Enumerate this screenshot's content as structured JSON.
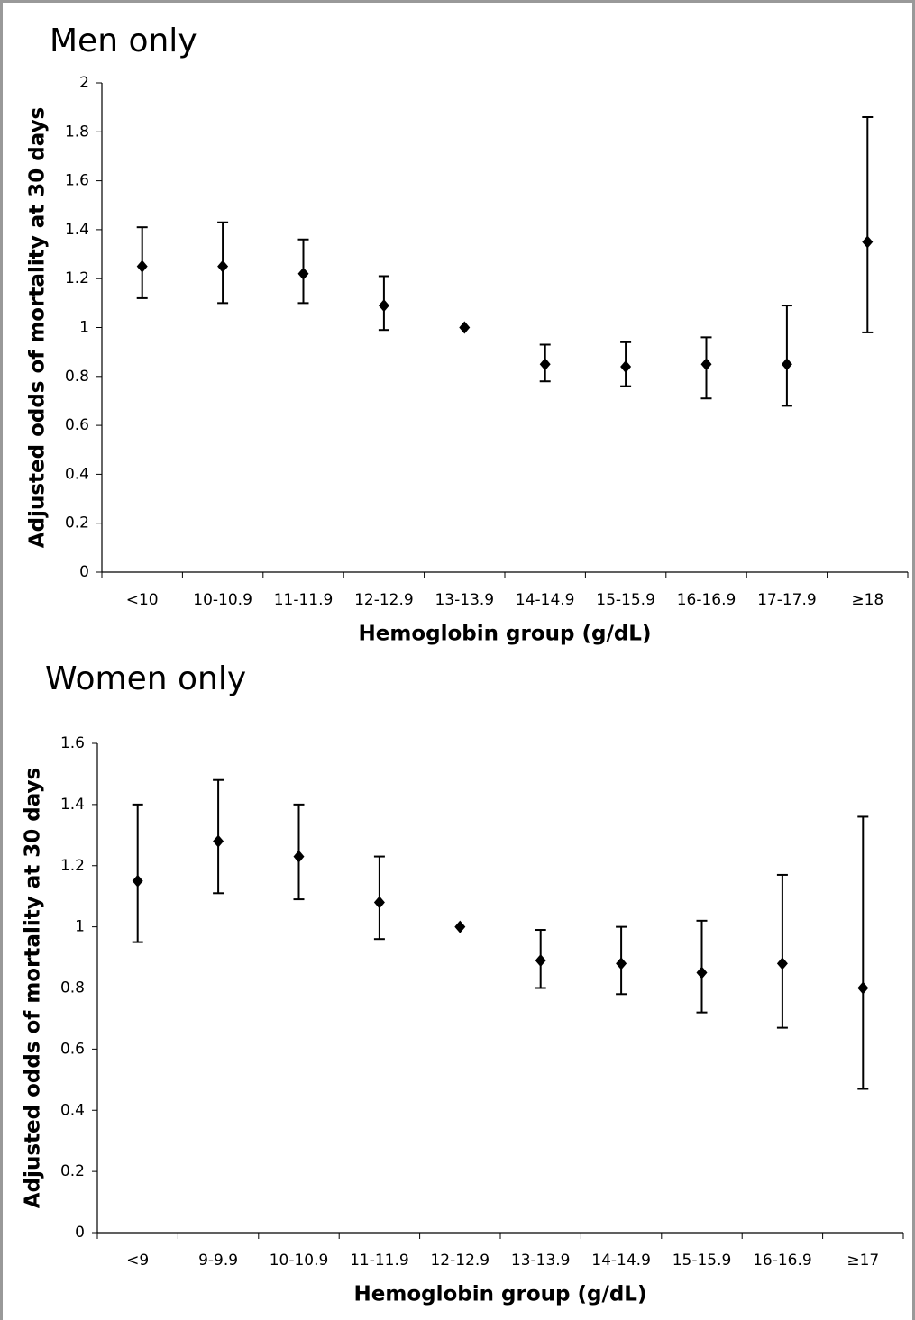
{
  "chart_data": [
    {
      "type": "errorbar",
      "title": "Men only",
      "x_label": "Hemoglobin group (g/dL)",
      "y_label": "Adjusted odds of mortality at 30 days",
      "categories": [
        "<10",
        "10-10.9",
        "11-11.9",
        "12-12.9",
        "13-13.9",
        "14-14.9",
        "15-15.9",
        "16-16.9",
        "17-17.9",
        "≥18"
      ],
      "values": [
        1.25,
        1.25,
        1.22,
        1.09,
        1.0,
        0.85,
        0.84,
        0.85,
        0.85,
        1.35
      ],
      "lower": [
        1.12,
        1.1,
        1.1,
        0.99,
        null,
        0.78,
        0.76,
        0.71,
        0.68,
        0.98
      ],
      "upper": [
        1.41,
        1.43,
        1.36,
        1.21,
        null,
        0.93,
        0.94,
        0.96,
        1.09,
        1.86
      ],
      "color": "#000000",
      "ylim": [
        0,
        2
      ],
      "yticks": [
        0,
        0.2,
        0.4,
        0.6,
        0.8,
        1,
        1.2,
        1.4,
        1.6,
        1.8,
        2
      ],
      "grid": false
    },
    {
      "type": "errorbar",
      "title": "Women only",
      "x_label": "Hemoglobin group (g/dL)",
      "y_label": "Adjusted odds of mortality at 30 days",
      "categories": [
        "<9",
        "9-9.9",
        "10-10.9",
        "11-11.9",
        "12-12.9",
        "13-13.9",
        "14-14.9",
        "15-15.9",
        "16-16.9",
        "≥17"
      ],
      "values": [
        1.15,
        1.28,
        1.23,
        1.08,
        1.0,
        0.89,
        0.88,
        0.85,
        0.88,
        0.8
      ],
      "lower": [
        0.95,
        1.11,
        1.09,
        0.96,
        null,
        0.8,
        0.78,
        0.72,
        0.67,
        0.47
      ],
      "upper": [
        1.4,
        1.48,
        1.4,
        1.23,
        null,
        0.99,
        1.0,
        1.02,
        1.17,
        1.36
      ],
      "color": "#000000",
      "ylim": [
        0,
        1.6
      ],
      "yticks": [
        0,
        0.2,
        0.4,
        0.6,
        0.8,
        1,
        1.2,
        1.4,
        1.6
      ],
      "grid": false
    }
  ]
}
